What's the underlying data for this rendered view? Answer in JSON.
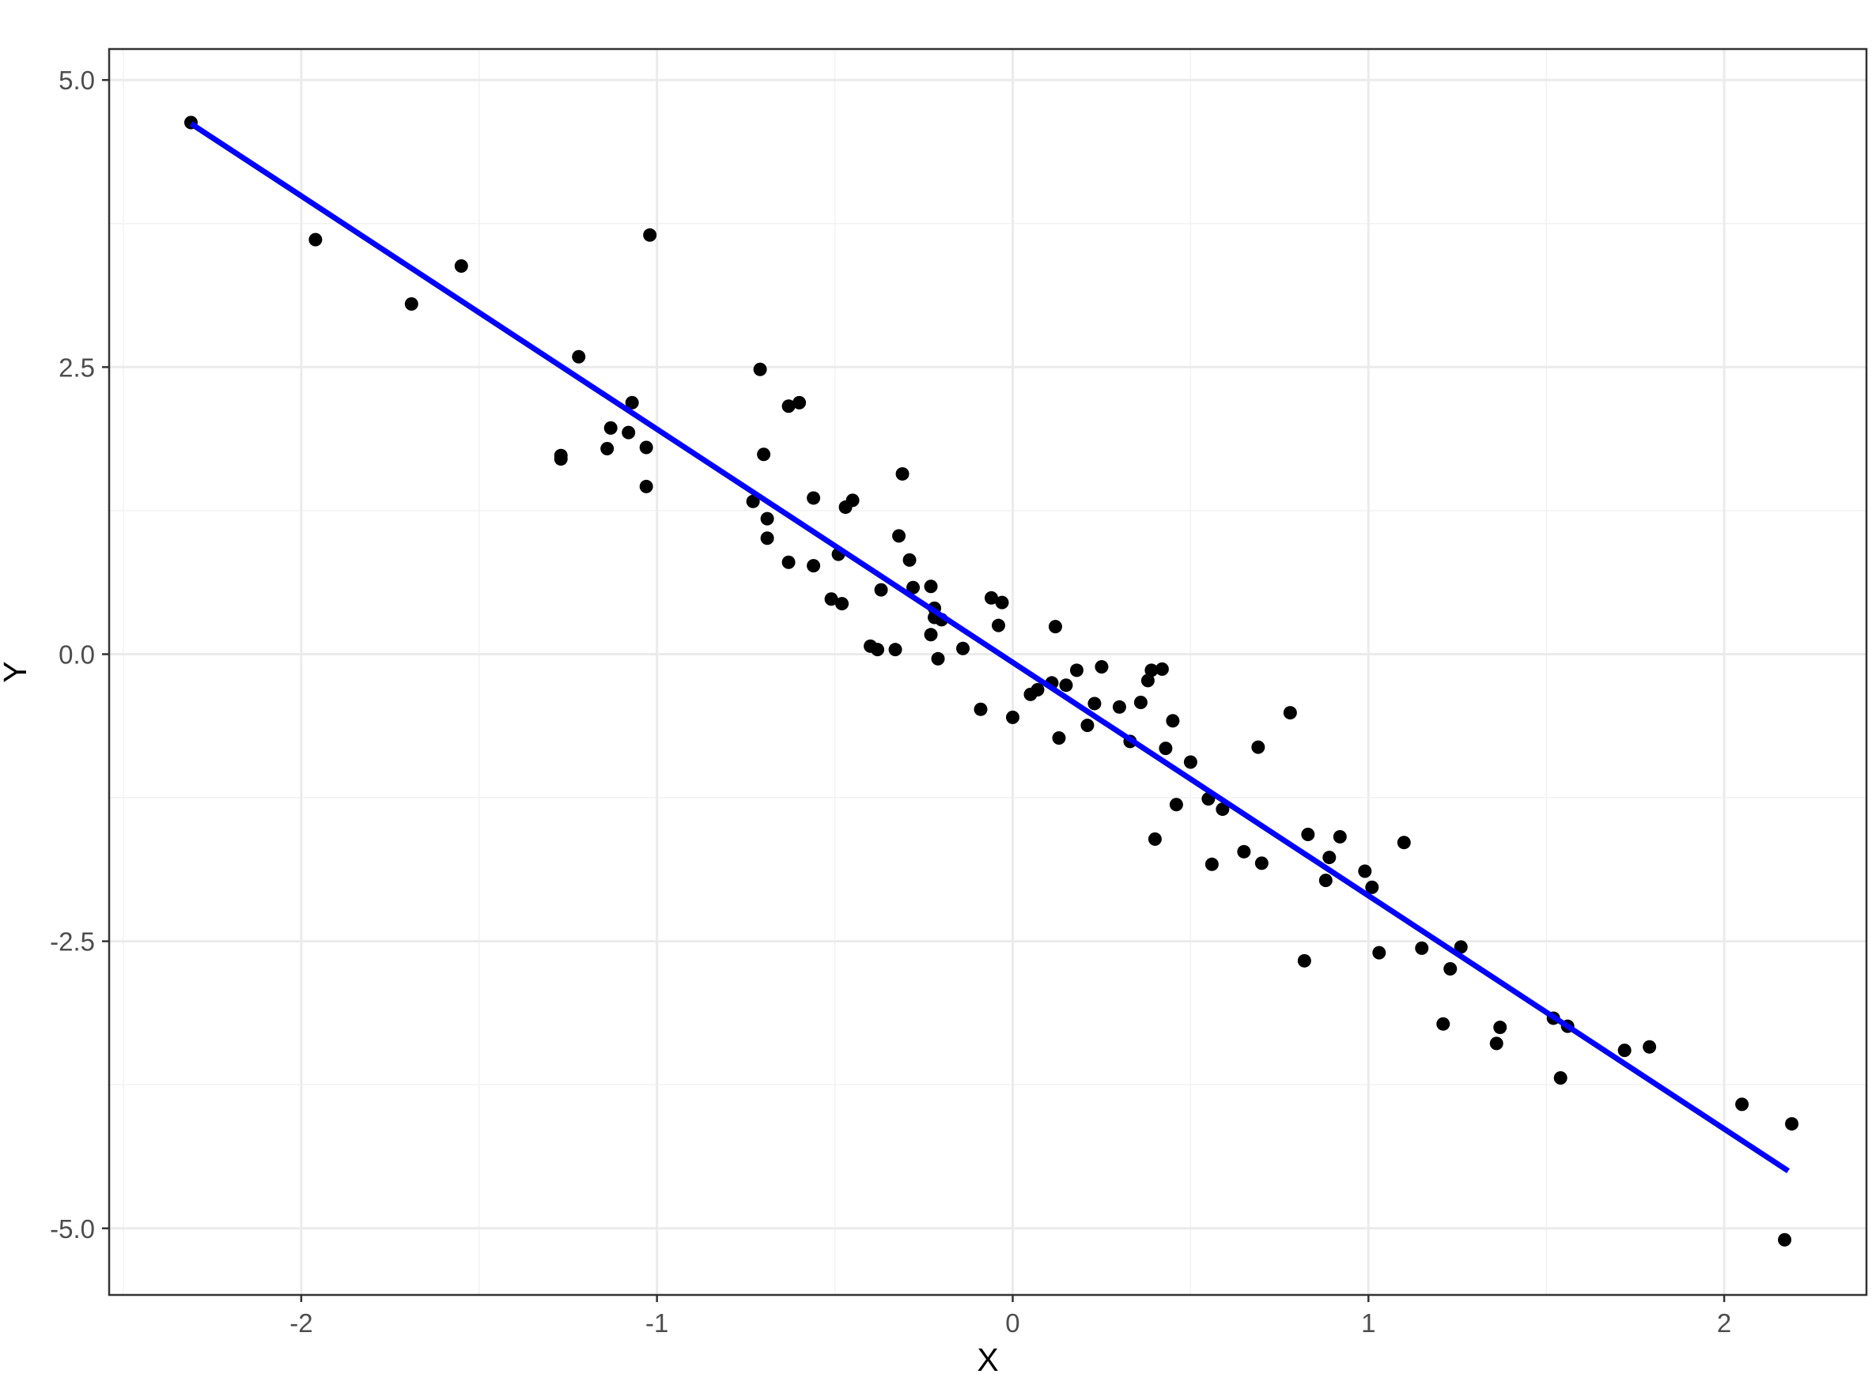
{
  "chart_data": {
    "type": "scatter",
    "title": "",
    "xlabel": "X",
    "ylabel": "Y",
    "xlim": [
      -2.54,
      2.4
    ],
    "ylim": [
      -5.58,
      5.27
    ],
    "x_ticks": [
      -2,
      -1,
      0,
      1,
      2
    ],
    "x_tick_labels": [
      "-2",
      "-1",
      "0",
      "1",
      "2"
    ],
    "y_ticks": [
      -5,
      -2.5,
      0,
      2.5,
      5
    ],
    "y_tick_labels": [
      "-5.0",
      "-2.5",
      "0.0",
      "2.5",
      "5.0"
    ],
    "grid": true,
    "legend": "none",
    "colors": {
      "points": "#000000",
      "fit_line": "#0000ff",
      "grid_major": "#ebebeb",
      "grid_minor": "#f2f2f2",
      "panel_border": "#333333",
      "tick_label": "#4d4d4d"
    },
    "fit_line": {
      "x": [
        -2.31,
        2.18
      ],
      "y": [
        4.62,
        -4.5
      ]
    },
    "points": [
      [
        -2.31,
        4.63
      ],
      [
        -1.96,
        3.61
      ],
      [
        -1.69,
        3.05
      ],
      [
        -1.55,
        3.38
      ],
      [
        -1.27,
        1.73
      ],
      [
        -1.27,
        1.7
      ],
      [
        -1.22,
        2.59
      ],
      [
        -1.14,
        1.79
      ],
      [
        -1.13,
        1.97
      ],
      [
        -1.08,
        1.93
      ],
      [
        -1.07,
        2.19
      ],
      [
        -1.03,
        1.8
      ],
      [
        -1.03,
        1.46
      ],
      [
        -1.02,
        3.65
      ],
      [
        -0.73,
        1.33
      ],
      [
        -0.71,
        2.48
      ],
      [
        -0.7,
        1.74
      ],
      [
        -0.69,
        1.18
      ],
      [
        -0.69,
        1.01
      ],
      [
        -0.63,
        0.8
      ],
      [
        -0.63,
        2.16
      ],
      [
        -0.6,
        2.19
      ],
      [
        -0.56,
        1.36
      ],
      [
        -0.56,
        0.77
      ],
      [
        -0.51,
        0.48
      ],
      [
        -0.49,
        0.87
      ],
      [
        -0.48,
        0.44
      ],
      [
        -0.47,
        1.28
      ],
      [
        -0.45,
        1.34
      ],
      [
        -0.4,
        0.07
      ],
      [
        -0.38,
        0.04
      ],
      [
        -0.37,
        0.56
      ],
      [
        -0.33,
        0.04
      ],
      [
        -0.32,
        1.03
      ],
      [
        -0.31,
        1.57
      ],
      [
        -0.29,
        0.82
      ],
      [
        -0.28,
        0.58
      ],
      [
        -0.23,
        0.17
      ],
      [
        -0.23,
        0.59
      ],
      [
        -0.22,
        0.4
      ],
      [
        -0.22,
        0.32
      ],
      [
        -0.21,
        -0.04
      ],
      [
        -0.2,
        0.3
      ],
      [
        -0.14,
        0.05
      ],
      [
        -0.09,
        -0.48
      ],
      [
        -0.06,
        0.49
      ],
      [
        -0.04,
        0.25
      ],
      [
        -0.03,
        0.45
      ],
      [
        0.0,
        -0.55
      ],
      [
        0.05,
        -0.35
      ],
      [
        0.07,
        -0.31
      ],
      [
        0.11,
        -0.25
      ],
      [
        0.12,
        0.24
      ],
      [
        0.13,
        -0.73
      ],
      [
        0.15,
        -0.27
      ],
      [
        0.18,
        -0.14
      ],
      [
        0.21,
        -0.62
      ],
      [
        0.23,
        -0.43
      ],
      [
        0.25,
        -0.11
      ],
      [
        0.3,
        -0.46
      ],
      [
        0.33,
        -0.76
      ],
      [
        0.36,
        -0.42
      ],
      [
        0.38,
        -0.23
      ],
      [
        0.39,
        -0.14
      ],
      [
        0.4,
        -1.61
      ],
      [
        0.42,
        -0.13
      ],
      [
        0.43,
        -0.82
      ],
      [
        0.45,
        -0.58
      ],
      [
        0.46,
        -1.31
      ],
      [
        0.5,
        -0.94
      ],
      [
        0.55,
        -1.26
      ],
      [
        0.56,
        -1.83
      ],
      [
        0.59,
        -1.35
      ],
      [
        0.65,
        -1.72
      ],
      [
        0.69,
        -0.81
      ],
      [
        0.7,
        -1.82
      ],
      [
        0.78,
        -0.51
      ],
      [
        0.82,
        -2.67
      ],
      [
        0.83,
        -1.57
      ],
      [
        0.88,
        -1.97
      ],
      [
        0.89,
        -1.77
      ],
      [
        0.92,
        -1.59
      ],
      [
        0.99,
        -1.89
      ],
      [
        1.01,
        -2.03
      ],
      [
        1.03,
        -2.6
      ],
      [
        1.1,
        -1.64
      ],
      [
        1.15,
        -2.56
      ],
      [
        1.21,
        -3.22
      ],
      [
        1.23,
        -2.74
      ],
      [
        1.26,
        -2.55
      ],
      [
        1.36,
        -3.39
      ],
      [
        1.37,
        -3.25
      ],
      [
        1.52,
        -3.17
      ],
      [
        1.54,
        -3.69
      ],
      [
        1.56,
        -3.24
      ],
      [
        1.72,
        -3.45
      ],
      [
        1.79,
        -3.42
      ],
      [
        2.05,
        -3.92
      ],
      [
        2.17,
        -5.1
      ],
      [
        2.19,
        -4.09
      ]
    ]
  }
}
